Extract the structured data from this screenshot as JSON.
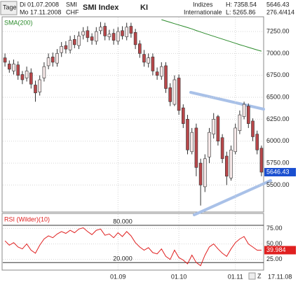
{
  "header": {
    "period": "Tage",
    "from": "Di 01.07.2008",
    "to": "Mo 17.11.2008",
    "symbol": "SMI",
    "currency": "CHF",
    "name": "SMI Index",
    "tag": "KI",
    "group1": "Indizes",
    "group2": "Internationale",
    "high": "H: 7358.54",
    "low": "L: 5265.86",
    "last": "5646.43",
    "range": "276.4/414",
    "end_date": "17.11.08"
  },
  "chart_data": [
    {
      "type": "candlestick",
      "categories": [
        null,
        null,
        null,
        null,
        null,
        null,
        null,
        null,
        null,
        null,
        null,
        null,
        null,
        null,
        null,
        null,
        null,
        null,
        null,
        null,
        null,
        null,
        null,
        null,
        null,
        null,
        "01.09",
        null,
        null,
        null,
        null,
        null,
        null,
        null,
        null,
        null,
        null,
        null,
        null,
        null,
        "01.10",
        null,
        null,
        null,
        null,
        null,
        null,
        null,
        null,
        null,
        null,
        null,
        null,
        "01.11",
        null,
        null,
        null,
        null,
        null,
        null
      ],
      "open": [
        6950,
        6880,
        6800,
        6870,
        6760,
        6720,
        6780,
        6640,
        6560,
        6720,
        6860,
        6960,
        6890,
        7010,
        7090,
        7040,
        7160,
        7090,
        7210,
        7260,
        7190,
        7140,
        7260,
        7310,
        7190,
        7230,
        7140,
        7260,
        7190,
        7310,
        7240,
        7110,
        6990,
        6890,
        6960,
        6790,
        6740,
        6860,
        6610,
        6420,
        6720,
        6380,
        6250,
        5880,
        6150,
        5750,
        5480,
        5820,
        6080,
        6280,
        6040,
        5830,
        5580,
        5880,
        6120,
        6280,
        6400,
        6230,
        6080,
        5920
      ],
      "high": [
        7000,
        6920,
        6930,
        6910,
        6800,
        6850,
        6830,
        6690,
        6750,
        6900,
        7000,
        7010,
        7050,
        7130,
        7140,
        7200,
        7210,
        7250,
        7300,
        7310,
        7230,
        7300,
        7358.54,
        7350,
        7270,
        7280,
        7300,
        7310,
        7350,
        7350,
        7280,
        7150,
        7040,
        7000,
        7000,
        6840,
        6900,
        6900,
        6660,
        6750,
        6760,
        6420,
        6300,
        6150,
        6200,
        5800,
        5850,
        6150,
        6320,
        6300,
        6080,
        5880,
        5950,
        6200,
        6350,
        6450,
        6430,
        6260,
        6120,
        5950
      ],
      "low": [
        6850,
        6780,
        6760,
        6700,
        6650,
        6680,
        6600,
        6450,
        6520,
        6680,
        6820,
        6850,
        6850,
        6960,
        7000,
        7000,
        7060,
        7050,
        7160,
        7130,
        7100,
        7100,
        7220,
        7150,
        7150,
        7100,
        7100,
        7160,
        7150,
        7180,
        7050,
        6950,
        6850,
        6840,
        6750,
        6700,
        6700,
        6550,
        6400,
        6400,
        6300,
        6150,
        5850,
        5850,
        5600,
        5265.86,
        5420,
        5750,
        6030,
        5950,
        5750,
        5500,
        5550,
        5850,
        6080,
        6250,
        6150,
        6000,
        5850,
        5600
      ],
      "close": [
        6900,
        6820,
        6880,
        6750,
        6700,
        6800,
        6650,
        6550,
        6700,
        6850,
        6950,
        6900,
        7000,
        7080,
        7050,
        7150,
        7100,
        7200,
        7250,
        7180,
        7150,
        7250,
        7300,
        7200,
        7220,
        7150,
        7250,
        7200,
        7300,
        7230,
        7100,
        7000,
        6900,
        6950,
        6800,
        6750,
        6850,
        6600,
        6450,
        6700,
        6350,
        6200,
        5900,
        6100,
        5700,
        5500,
        5800,
        6100,
        6250,
        6000,
        5800,
        5600,
        5900,
        6150,
        6300,
        6420,
        6200,
        6050,
        5900,
        5646.43
      ],
      "up_color": "#f6e8e8",
      "down_color": "#b8474a",
      "series": [
        {
          "name": "SMA(200)",
          "color": "#2a8a2a",
          "values": [
            null,
            null,
            null,
            null,
            null,
            null,
            null,
            null,
            null,
            null,
            null,
            null,
            null,
            null,
            null,
            null,
            null,
            null,
            null,
            null,
            null,
            null,
            null,
            null,
            null,
            null,
            null,
            null,
            null,
            null,
            null,
            null,
            null,
            null,
            null,
            null,
            7385,
            7370,
            7355,
            7340,
            7325,
            7310,
            7295,
            7280,
            7262,
            7245,
            7228,
            7212,
            7196,
            7180,
            7164,
            7148,
            7132,
            7116,
            7100,
            7085,
            7070,
            7055,
            7040,
            7026
          ]
        }
      ],
      "ylim": [
        5200,
        7410
      ],
      "yticks": [
        {
          "value": 7250,
          "label": "7250.00"
        },
        {
          "value": 7000,
          "label": "7000.00"
        },
        {
          "value": 6750,
          "label": "6750.00"
        },
        {
          "value": 6500,
          "label": "6500.00"
        },
        {
          "value": 6250,
          "label": "6250.00"
        },
        {
          "value": 6000,
          "label": "6000.00"
        },
        {
          "value": 5750,
          "label": "5750.00"
        },
        {
          "value": 5500,
          "label": "5500.00"
        }
      ],
      "grid": true
    },
    {
      "type": "line",
      "series": [
        {
          "name": "RSI (Wilder)(10)",
          "color": "#e02020",
          "values": [
            55,
            48,
            52,
            45,
            42,
            50,
            40,
            35,
            48,
            58,
            63,
            60,
            66,
            70,
            67,
            72,
            68,
            74,
            76,
            70,
            65,
            72,
            74,
            64,
            66,
            60,
            68,
            62,
            70,
            63,
            52,
            45,
            40,
            44,
            36,
            34,
            42,
            30,
            25,
            40,
            28,
            24,
            18,
            32,
            20,
            15,
            32,
            45,
            50,
            42,
            35,
            30,
            42,
            52,
            58,
            62,
            50,
            45,
            40,
            39.984
          ]
        }
      ],
      "levels": [
        {
          "value": 80,
          "label": "80.000"
        },
        {
          "value": 20,
          "label": "20.000"
        }
      ],
      "ylim": [
        9,
        98
      ],
      "yticks": [
        {
          "value": 75,
          "label": "75.00"
        },
        {
          "value": 50,
          "label": "50.00"
        },
        {
          "value": 25,
          "label": "25.00"
        }
      ],
      "grid": true
    }
  ]
}
